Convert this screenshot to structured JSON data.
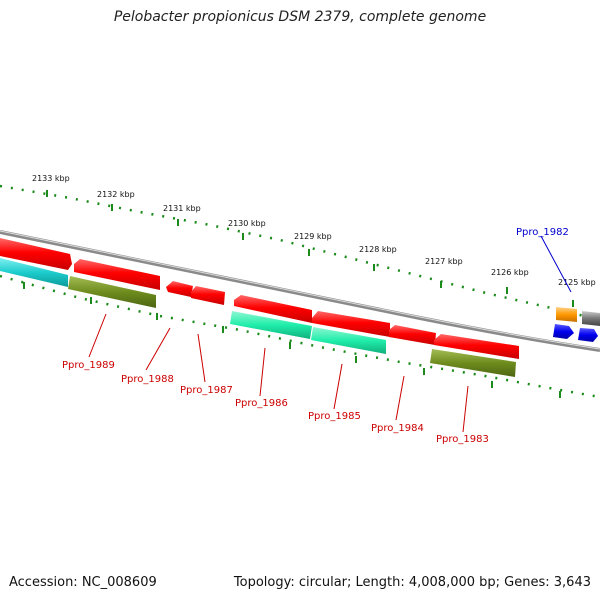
{
  "title": "Pelobacter propionicus DSM 2379, complete genome",
  "accession_text": "Accession: NC_008609",
  "summary_text": "Topology: circular; Length: 4,008,000 bp; Genes: 3,643",
  "scale_labels": [
    "2133 kbp",
    "2132 kbp",
    "2131 kbp",
    "2130 kbp",
    "2129 kbp",
    "2128 kbp",
    "2127 kbp",
    "2126 kbp",
    "2125 kbp"
  ],
  "gene_labels": [
    "Ppro_1982",
    "Ppro_1983",
    "Ppro_1984",
    "Ppro_1985",
    "Ppro_1986",
    "Ppro_1987",
    "Ppro_1988",
    "Ppro_1989"
  ],
  "colors": {
    "backbone": "#888888",
    "ticks": "#1a8a1a",
    "cds_red": "#ff1a1a",
    "cds_teal": "#22cccc",
    "cds_green": "#6e8c1e",
    "cds_mint": "#22eeaa",
    "cds_orange": "#ff9900",
    "cds_blue": "#0a0aee",
    "cds_gray": "#777777",
    "label_red": "#cc0000",
    "label_blue": "#0000cc"
  }
}
